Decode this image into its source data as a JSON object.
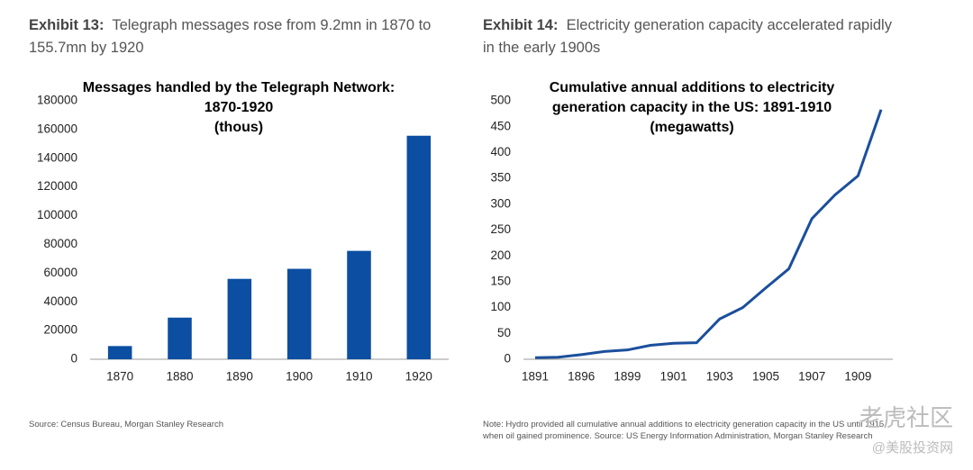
{
  "exhibits": [
    {
      "label": "Exhibit 13:",
      "heading": "Telegraph messages rose from 9.2mn in 1870 to 155.7mn by 1920",
      "source": "Source: Census Bureau, Morgan Stanley Research"
    },
    {
      "label": "Exhibit 14:",
      "heading": "Electricity generation capacity accelerated rapidly in the early 1900s",
      "source": "Note: Hydro provided all cumulative annual additions to electricity generation capacity in the US until 1915, when oil gained prominence. Source: US Energy Information Administration, Morgan Stanley Research"
    }
  ],
  "watermark": [
    "老虎社区",
    "@美股投资网"
  ],
  "chart_data": [
    {
      "type": "bar",
      "title": [
        "Messages handled by the Telegraph Network:",
        "1870-1920",
        "(thous)"
      ],
      "categories": [
        "1870",
        "1880",
        "1890",
        "1900",
        "1910",
        "1920"
      ],
      "values": [
        9200,
        29000,
        56000,
        63000,
        75500,
        155700
      ],
      "color": "#0b4ea2",
      "ylim": [
        0,
        180000
      ],
      "yticks": [
        0,
        20000,
        40000,
        60000,
        80000,
        100000,
        120000,
        140000,
        160000,
        180000
      ],
      "grid": false
    },
    {
      "type": "line",
      "title": [
        "Cumulative annual additions to electricity",
        "generation capacity in the US: 1891-1910",
        "(megawatts)"
      ],
      "categories": [
        "1891",
        null,
        "1896",
        null,
        "1899",
        null,
        "1901",
        null,
        "1903",
        null,
        "1905",
        null,
        "1907",
        null,
        "1909",
        null
      ],
      "values": [
        3,
        4,
        9,
        15,
        18,
        27,
        31,
        32,
        78,
        100,
        138,
        175,
        272,
        318,
        355,
        483
      ],
      "color": "#1b4f9c",
      "ylim": [
        0,
        500
      ],
      "yticks": [
        0,
        50,
        100,
        150,
        200,
        250,
        300,
        350,
        400,
        450,
        500
      ],
      "grid": false
    }
  ]
}
